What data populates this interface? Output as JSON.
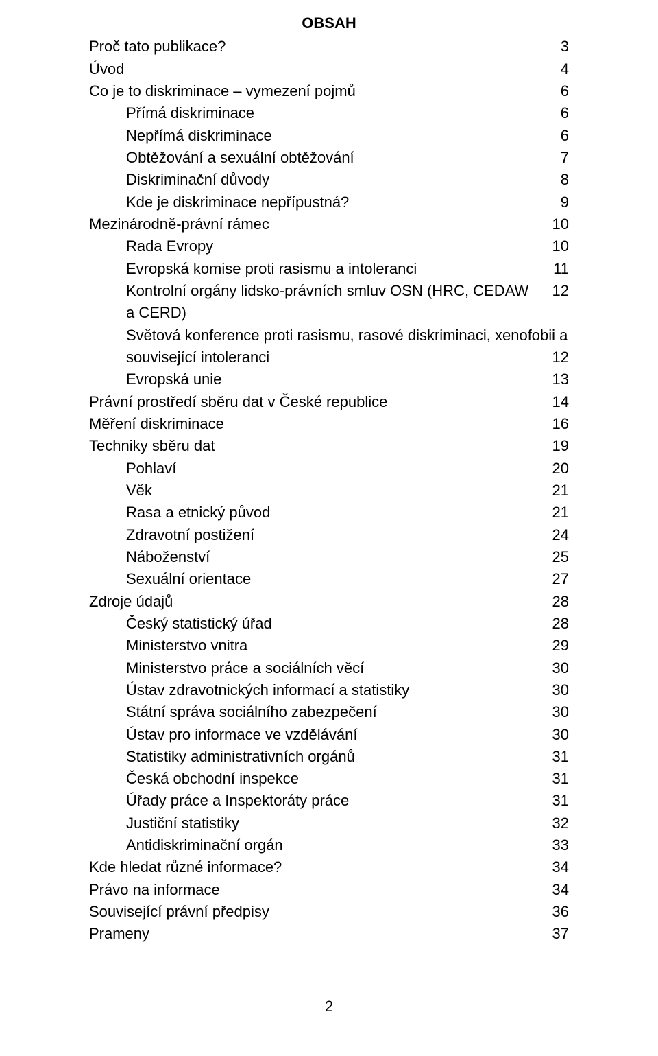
{
  "title": "OBSAH",
  "level0": {
    "e0": {
      "label": "Proč tato publikace?",
      "page": "3"
    },
    "e1": {
      "label": "Úvod",
      "page": "4"
    },
    "e2": {
      "label": "Co je to diskriminace – vymezení pojmů",
      "page": "6"
    },
    "e3": {
      "label": "Přímá diskriminace",
      "page": "6"
    },
    "e4": {
      "label": "Nepřímá diskriminace",
      "page": "6"
    },
    "e5": {
      "label": "Obtěžování a sexuální obtěžování",
      "page": "7"
    },
    "e6": {
      "label": "Diskriminační důvody",
      "page": "8"
    },
    "e7": {
      "label": "Kde je diskriminace nepřípustná?",
      "page": "9"
    },
    "e8": {
      "label": "Mezinárodně-právní rámec",
      "page": "10"
    },
    "e9": {
      "label": "Rada Evropy",
      "page": "10"
    },
    "e10": {
      "label": "Evropská komise proti rasismu a intoleranci",
      "page": "11"
    },
    "e11": {
      "label": "Kontrolní orgány lidsko-právních smluv OSN (HRC, CEDAW a CERD)",
      "page": "12"
    },
    "e12_line1": "Světová konference proti rasismu, rasové diskriminaci, xenofobii a",
    "e12": {
      "label": "související intoleranci",
      "page": "12"
    },
    "e13": {
      "label": "Evropská unie",
      "page": "13"
    },
    "e14": {
      "label": "Právní prostředí sběru dat v České republice",
      "page": "14"
    },
    "e15": {
      "label": "Měření diskriminace",
      "page": "16"
    },
    "e16": {
      "label": "Techniky sběru dat",
      "page": "19"
    },
    "e17": {
      "label": "Pohlaví",
      "page": "20"
    },
    "e18": {
      "label": "Věk",
      "page": "21"
    },
    "e19": {
      "label": "Rasa a etnický původ",
      "page": "21"
    },
    "e20": {
      "label": "Zdravotní postižení",
      "page": "24"
    },
    "e21": {
      "label": "Náboženství",
      "page": "25"
    },
    "e22": {
      "label": "Sexuální orientace",
      "page": "27"
    },
    "e23": {
      "label": "Zdroje údajů",
      "page": "28"
    },
    "e24": {
      "label": "Český statistický úřad",
      "page": "28"
    },
    "e25": {
      "label": "Ministerstvo vnitra",
      "page": "29"
    },
    "e26": {
      "label": "Ministerstvo práce a sociálních věcí",
      "page": "30"
    },
    "e27": {
      "label": "Ústav zdravotnických informací a statistiky",
      "page": "30"
    },
    "e28": {
      "label": "Státní správa sociálního zabezpečení",
      "page": "30"
    },
    "e29": {
      "label": "Ústav pro informace ve vzdělávání",
      "page": "30"
    },
    "e30": {
      "label": "Statistiky administrativních orgánů",
      "page": "31"
    },
    "e31": {
      "label": "Česká obchodní inspekce",
      "page": "31"
    },
    "e32": {
      "label": "Úřady práce a Inspektoráty práce",
      "page": "31"
    },
    "e33": {
      "label": "Justiční statistiky",
      "page": "32"
    },
    "e34": {
      "label": "Antidiskriminační orgán",
      "page": "33"
    },
    "e35": {
      "label": "Kde hledat různé informace?",
      "page": "34"
    },
    "e36": {
      "label": "Právo na informace",
      "page": "34"
    },
    "e37": {
      "label": "Související právní předpisy",
      "page": "36"
    },
    "e38": {
      "label": "Prameny",
      "page": "37"
    }
  },
  "footer_page_number": "2"
}
